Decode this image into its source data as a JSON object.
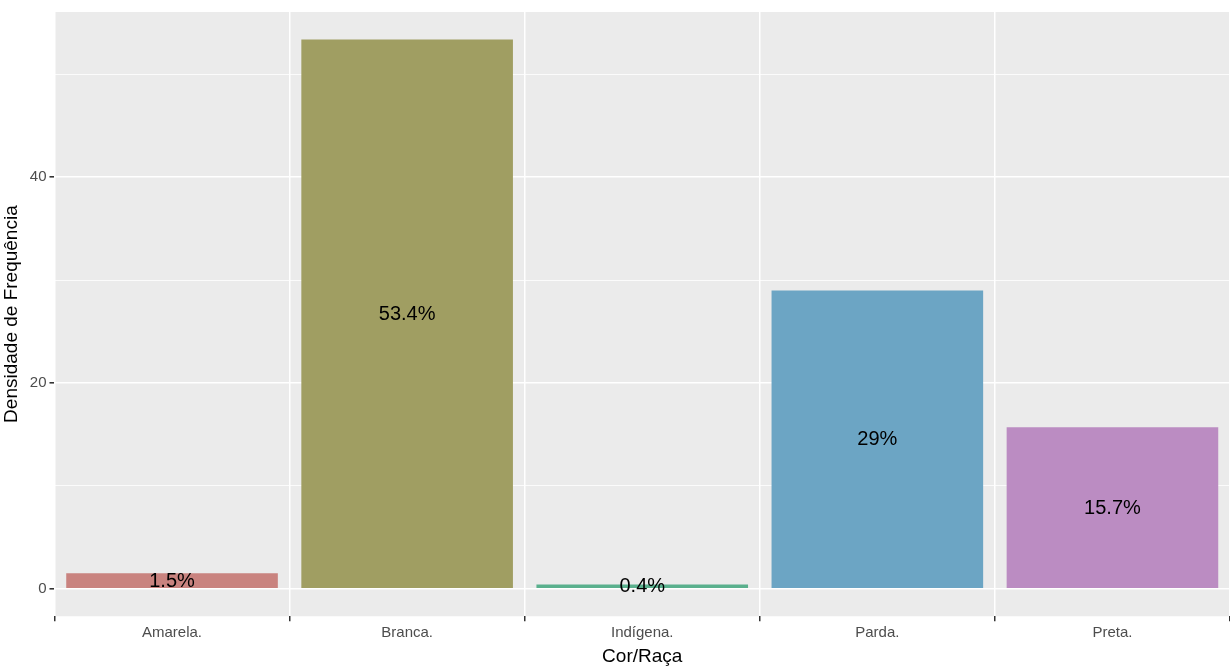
{
  "chart_data": {
    "type": "bar",
    "xlabel": "Cor/Raça",
    "ylabel": "Densidade de Frequência",
    "categories": [
      "Amarela.",
      "Branca.",
      "Indígena.",
      "Parda.",
      "Preta."
    ],
    "values": [
      1.5,
      53.4,
      0.4,
      29,
      15.7
    ],
    "colors": [
      "#c9837f",
      "#a09e62",
      "#5ab08d",
      "#6ca5c4",
      "#bb8cc2"
    ],
    "value_labels": [
      "1.5%",
      "53.4%",
      "0.4%",
      "29%",
      "15.7%"
    ],
    "ylim": [
      -2.67,
      56.07
    ],
    "yticks": [
      0,
      {
        "value": 10,
        "label": null
      },
      20,
      {
        "value": 30,
        "label": null
      },
      40,
      {
        "value": 50,
        "label": null
      }
    ],
    "grid": true,
    "legend": false
  }
}
